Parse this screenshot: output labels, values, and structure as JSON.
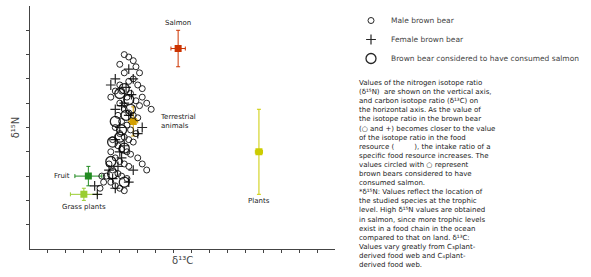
{
  "chart_data": {
    "type": "scatter",
    "x_label": "δ¹³C",
    "y_label": "δ¹⁵N",
    "xlim": [
      -32,
      2
    ],
    "ylim": [
      -2,
      18
    ],
    "xticks": [
      -30,
      -28,
      -26,
      -24,
      -22,
      -20,
      -18,
      -16,
      -14,
      -12,
      -10,
      -8,
      -6,
      -4,
      -2,
      0
    ],
    "yticks": [
      0,
      2,
      4,
      6,
      8,
      10,
      12,
      14,
      16
    ],
    "tick_labels": false,
    "grid": false,
    "legend": "upper right",
    "series": [
      {
        "name": "Male brown bear",
        "marker": "circle",
        "color": "#000000",
        "x": [
          -21.5,
          -21.0,
          -20.5,
          -20.0,
          -19.5,
          -21.8,
          -21.2,
          -20.8,
          -20.2,
          -19.8,
          -22.0,
          -21.5,
          -21.0,
          -20.5,
          -20.0,
          -22.2,
          -21.8,
          -21.2,
          -20.8,
          -20.2,
          -22.5,
          -22.0,
          -21.5,
          -21.0,
          -20.5,
          -22.8,
          -22.2,
          -21.8,
          -21.2,
          -20.8,
          -23.0,
          -22.5,
          -22.0,
          -21.5,
          -21.0,
          -23.2,
          -22.8,
          -22.2,
          -21.8,
          -21.2,
          -23.5,
          -23.0,
          -22.5,
          -22.0,
          -21.5,
          -19.5,
          -19.0,
          -18.5,
          -22.5,
          -22.0,
          -23.0,
          -20.2,
          -19.8,
          -20.5,
          -21.5,
          -21.0,
          -22.0,
          -20.0,
          -19.5,
          -19.0,
          -23.8,
          -24.0,
          -24.2
        ],
        "y": [
          12.5,
          11.8,
          12.0,
          11.5,
          11.2,
          11.0,
          10.5,
          10.8,
          10.2,
          9.8,
          10.0,
          9.5,
          9.2,
          9.0,
          8.8,
          9.0,
          8.5,
          8.2,
          7.8,
          7.5,
          8.0,
          7.5,
          7.2,
          7.0,
          6.8,
          7.0,
          6.5,
          6.2,
          6.0,
          5.8,
          6.0,
          5.5,
          5.2,
          5.0,
          4.8,
          5.0,
          4.5,
          4.2,
          4.0,
          3.8,
          4.0,
          3.5,
          3.2,
          3.0,
          2.8,
          10.5,
          10.0,
          9.5,
          11.0,
          11.5,
          10.5,
          13.0,
          12.5,
          13.5,
          14.0,
          13.8,
          13.2,
          5.5,
          5.0,
          4.5,
          3.5,
          4.0,
          3.0
        ]
      },
      {
        "name": "Female brown bear",
        "marker": "plus",
        "color": "#000000",
        "x": [
          -21.3,
          -20.7,
          -21.8,
          -21.0,
          -22.0,
          -22.5,
          -21.5,
          -22.0,
          -21.8,
          -22.2,
          -22.8,
          -23.2,
          -22.5,
          -21.0,
          -20.5,
          -20.0,
          -19.5,
          -21.5,
          -22.5,
          -20.5,
          -21.0,
          -22.5,
          -23.0,
          -24.5,
          -24.8
        ],
        "y": [
          11.3,
          10.7,
          9.8,
          9.0,
          8.0,
          7.0,
          6.5,
          6.0,
          5.5,
          4.8,
          3.8,
          4.5,
          3.0,
          3.5,
          4.5,
          7.5,
          8.0,
          10.0,
          9.5,
          12.0,
          12.8,
          12.0,
          11.5,
          2.5,
          3.2
        ]
      },
      {
        "name": "Brown bear considered to have consumed salmon",
        "marker": "ring",
        "color": "#000000",
        "x": [
          -21.0,
          -21.5,
          -20.8,
          -22.0,
          -21.3,
          -22.0,
          -22.5,
          -21.8,
          -22.8,
          -21.5,
          -23.0,
          -22.8,
          -21.5
        ],
        "y": [
          10.3,
          11.2,
          9.5,
          10.8,
          9.0,
          7.2,
          8.5,
          7.8,
          6.8,
          6.3,
          5.2,
          4.2,
          3.5
        ]
      }
    ],
    "resources": [
      {
        "name": "Salmon",
        "marker": "square",
        "x": -15.5,
        "y": 14.5,
        "xerr": 0.8,
        "yerr": 1.5,
        "color": "#cc3300"
      },
      {
        "name": "Terrestrial\nanimals",
        "marker": "square",
        "x": -20.5,
        "y": 8.5,
        "xerr": 0.5,
        "yerr": 1.2,
        "color": "#d4a000"
      },
      {
        "name": "Fruit",
        "marker": "square",
        "x": -25.5,
        "y": 4.0,
        "xerr": 1.5,
        "yerr": 0.8,
        "color": "#228B22"
      },
      {
        "name": "Grass plants",
        "marker": "square",
        "x": -26.0,
        "y": 2.5,
        "xerr": 1.5,
        "yerr": 0.5,
        "color": "#9ACD32"
      },
      {
        "name": "Plants",
        "marker": "square",
        "x": -6.5,
        "y": 6.0,
        "xerr": 0.4,
        "yerr": 3.5,
        "color": "#cccc00"
      }
    ],
    "annotations": [
      "Values of the nitrogen isotope ratio\n(δ¹⁵N)  are shown on the vertical axis,\nand carbon isotope ratio (δ¹³C) on\nthe horizontal axis. As the value of\nthe isotope ratio in the brown bear\n(○ and +) becomes closer to the value\nof the isotope ratio in the food\nresource (         ), the intake ratio of a\nspecific food resource increases. The\nvalues circled with ○ represent\nbrown bears considered to have\nconsumed salmon.\n*δ¹⁵N: Values reflect the location of\nthe studied species at the trophic\nlevel. High δ¹⁵N values are obtained\nin salmon, since more trophic levels\nexist in a food chain in the ocean\ncompared to that on land. δ¹³C:\nValues vary greatly from C₃plant-\nderived food web and C₄plant-\nderived food web."
    ]
  }
}
